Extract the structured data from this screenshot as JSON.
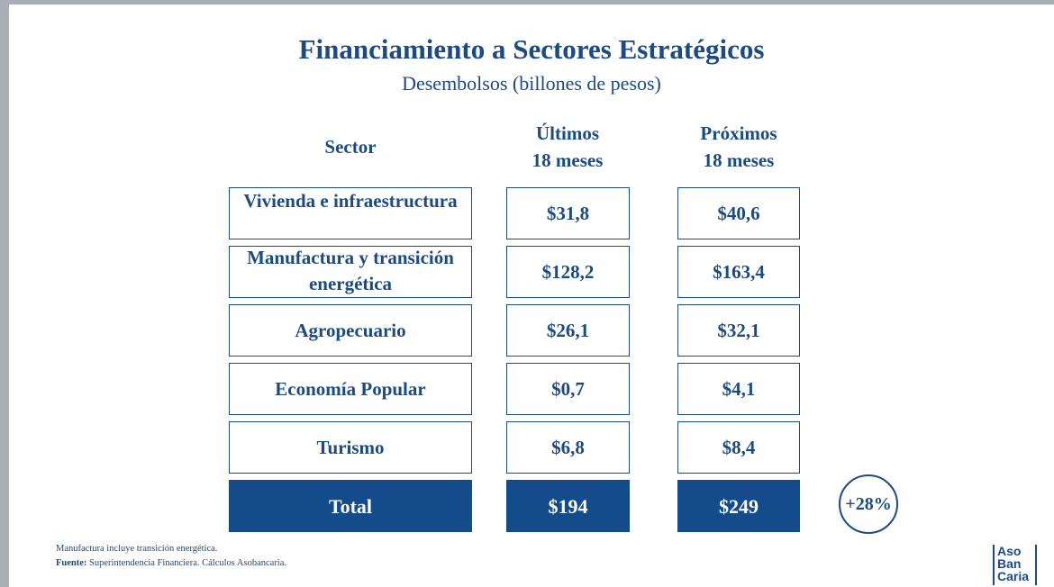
{
  "title": "Financiamiento a Sectores Estratégicos",
  "subtitle": "Desembolsos (billones de pesos)",
  "headers": {
    "sector": "Sector",
    "last_1": "Últimos",
    "last_2": "18 meses",
    "next_1": "Próximos",
    "next_2": "18 meses"
  },
  "rows": [
    {
      "sector": "Vivienda e infraestructura",
      "last": "$31,8",
      "next": "$40,6"
    },
    {
      "sector": "Manufactura y transición energética",
      "last": "$128,2",
      "next": "$163,4"
    },
    {
      "sector": "Agropecuario",
      "last": "$26,1",
      "next": "$32,1"
    },
    {
      "sector": "Economía Popular",
      "last": "$0,7",
      "next": "$4,1"
    },
    {
      "sector": "Turismo",
      "last": "$6,8",
      "next": "$8,4"
    }
  ],
  "total": {
    "label": "Total",
    "last": "$194",
    "next": "$249"
  },
  "growth": "+28%",
  "notes": {
    "note": "Manufactura incluye transición energética.",
    "source_label": "Fuente:",
    "source_text": " Superintendencia Financiera. Cálculos Asobancaria."
  },
  "logo": {
    "line1": "Aso",
    "line2": "Ban",
    "line3": "Caria"
  }
}
